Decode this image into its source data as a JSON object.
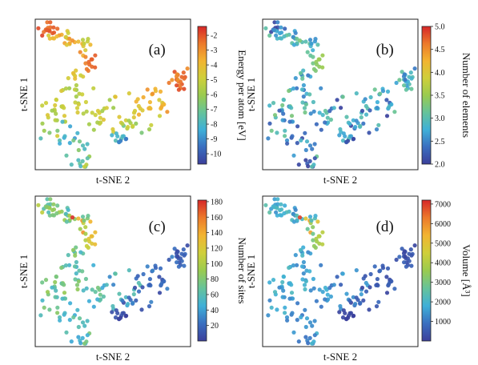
{
  "figure": {
    "colormap": [
      "#3b3f9b",
      "#3a6fc0",
      "#3fb0d8",
      "#66c39a",
      "#9acb4f",
      "#cfcf3a",
      "#f2b431",
      "#ec7a2b",
      "#d62728"
    ],
    "point_color": "#000000"
  },
  "chart_data": [
    {
      "type": "scatter",
      "panel_label": "(a)",
      "xlabel": "t-SNE 2",
      "ylabel": "t-SNE 1",
      "colorbar_label": "Energy per atom [eV]",
      "colorbar_range": [
        -10.7,
        -1.4
      ],
      "colorbar_ticks": [
        -2,
        -3,
        -4,
        -5,
        -6,
        -7,
        -8,
        -9,
        -10
      ],
      "colorbar_tick_labels": [
        "-2",
        "-3",
        "-4",
        "-5",
        "-6",
        "-7",
        "-8",
        "-9",
        "-10"
      ],
      "xlim": [
        0,
        100
      ],
      "ylim": [
        0,
        100
      ],
      "clusters": [
        {
          "x": 8,
          "y": 93,
          "sx": 4,
          "sy": 2.5,
          "n": 16,
          "c": [
            -2.5,
            -1.8
          ]
        },
        {
          "x": 18,
          "y": 88,
          "sx": 5,
          "sy": 3,
          "n": 18,
          "c": [
            -5,
            -3
          ]
        },
        {
          "x": 30,
          "y": 82,
          "sx": 4,
          "sy": 4,
          "n": 12,
          "c": [
            -5.5,
            -3
          ]
        },
        {
          "x": 33,
          "y": 72,
          "sx": 4,
          "sy": 3,
          "n": 12,
          "c": [
            -3.5,
            -2
          ]
        },
        {
          "x": 26,
          "y": 64,
          "sx": 3,
          "sy": 3,
          "n": 8,
          "c": [
            -5,
            -4
          ]
        },
        {
          "x": 25,
          "y": 50,
          "sx": 3,
          "sy": 4,
          "n": 12,
          "c": [
            -6,
            -4.5
          ]
        },
        {
          "x": 15,
          "y": 38,
          "sx": 6,
          "sy": 6,
          "n": 25,
          "c": [
            -6,
            -4.5
          ]
        },
        {
          "x": 20,
          "y": 20,
          "sx": 7,
          "sy": 6,
          "n": 20,
          "c": [
            -9,
            -6
          ]
        },
        {
          "x": 28,
          "y": 6,
          "sx": 4,
          "sy": 3,
          "n": 10,
          "c": [
            -8,
            -5
          ]
        },
        {
          "x": 40,
          "y": 34,
          "sx": 5,
          "sy": 4,
          "n": 14,
          "c": [
            -6,
            -4.5
          ]
        },
        {
          "x": 55,
          "y": 38,
          "sx": 8,
          "sy": 8,
          "n": 20,
          "c": [
            -6,
            -4
          ]
        },
        {
          "x": 55,
          "y": 20,
          "sx": 5,
          "sy": 3,
          "n": 12,
          "c": [
            -9.5,
            -7.5
          ]
        },
        {
          "x": 78,
          "y": 45,
          "sx": 8,
          "sy": 6,
          "n": 26,
          "c": [
            -5,
            -3
          ]
        },
        {
          "x": 93,
          "y": 60,
          "sx": 4,
          "sy": 4,
          "n": 20,
          "c": [
            -3,
            -1.8
          ]
        },
        {
          "x": 65,
          "y": 30,
          "sx": 5,
          "sy": 4,
          "n": 10,
          "c": [
            -7,
            -5
          ]
        }
      ]
    },
    {
      "type": "scatter",
      "panel_label": "(b)",
      "xlabel": "t-SNE 2",
      "ylabel": "t-SNE 1",
      "colorbar_label": "Number of elements",
      "colorbar_range": [
        2.0,
        5.0
      ],
      "colorbar_ticks": [
        5.0,
        4.5,
        4.0,
        3.5,
        3.0,
        2.5,
        2.0
      ],
      "colorbar_tick_labels": [
        "5.0",
        "4.5",
        "4.0",
        "3.5",
        "3.0",
        "2.5",
        "2.0"
      ],
      "xlim": [
        0,
        100
      ],
      "ylim": [
        0,
        100
      ],
      "clusters": [
        {
          "x": 8,
          "y": 93,
          "sx": 4,
          "sy": 2.5,
          "n": 16,
          "c": [
            2.0,
            3.2
          ]
        },
        {
          "x": 18,
          "y": 88,
          "sx": 5,
          "sy": 3,
          "n": 18,
          "c": [
            2.5,
            3.2
          ]
        },
        {
          "x": 30,
          "y": 82,
          "sx": 4,
          "sy": 4,
          "n": 12,
          "c": [
            2.5,
            3.3
          ]
        },
        {
          "x": 33,
          "y": 72,
          "sx": 4,
          "sy": 3,
          "n": 12,
          "c": [
            2.8,
            3.6
          ]
        },
        {
          "x": 26,
          "y": 64,
          "sx": 3,
          "sy": 3,
          "n": 8,
          "c": [
            2.4,
            3.2
          ]
        },
        {
          "x": 25,
          "y": 50,
          "sx": 3,
          "sy": 4,
          "n": 12,
          "c": [
            2.4,
            3.3
          ]
        },
        {
          "x": 15,
          "y": 38,
          "sx": 6,
          "sy": 6,
          "n": 25,
          "c": [
            2.2,
            3.3
          ]
        },
        {
          "x": 20,
          "y": 20,
          "sx": 7,
          "sy": 6,
          "n": 20,
          "c": [
            2.0,
            3.2
          ]
        },
        {
          "x": 28,
          "y": 6,
          "sx": 4,
          "sy": 3,
          "n": 10,
          "c": [
            2.0,
            3.0
          ]
        },
        {
          "x": 40,
          "y": 34,
          "sx": 5,
          "sy": 4,
          "n": 14,
          "c": [
            2.2,
            3.2
          ]
        },
        {
          "x": 55,
          "y": 38,
          "sx": 8,
          "sy": 8,
          "n": 20,
          "c": [
            2.0,
            3.3
          ]
        },
        {
          "x": 55,
          "y": 20,
          "sx": 5,
          "sy": 3,
          "n": 12,
          "c": [
            2.0,
            3.0
          ]
        },
        {
          "x": 78,
          "y": 45,
          "sx": 8,
          "sy": 6,
          "n": 26,
          "c": [
            2.0,
            3.2
          ]
        },
        {
          "x": 93,
          "y": 60,
          "sx": 4,
          "sy": 4,
          "n": 20,
          "c": [
            2.4,
            3.2
          ]
        },
        {
          "x": 65,
          "y": 30,
          "sx": 5,
          "sy": 4,
          "n": 10,
          "c": [
            2.0,
            3.0
          ]
        }
      ]
    },
    {
      "type": "scatter",
      "panel_label": "(c)",
      "xlabel": "t-SNE 2",
      "ylabel": "t-SNE 1",
      "colorbar_label": "Number of sites",
      "colorbar_range": [
        0,
        182
      ],
      "colorbar_ticks": [
        180,
        160,
        140,
        120,
        100,
        80,
        60,
        40,
        20
      ],
      "colorbar_tick_labels": [
        "180",
        "160",
        "140",
        "120",
        "100",
        "80",
        "60",
        "40",
        "20"
      ],
      "xlim": [
        0,
        100
      ],
      "ylim": [
        0,
        100
      ],
      "clusters": [
        {
          "x": 8,
          "y": 93,
          "sx": 4,
          "sy": 2.5,
          "n": 16,
          "c": [
            60,
            110
          ]
        },
        {
          "x": 18,
          "y": 88,
          "sx": 5,
          "sy": 3,
          "n": 18,
          "c": [
            50,
            100
          ]
        },
        {
          "x": 30,
          "y": 82,
          "sx": 4,
          "sy": 4,
          "n": 12,
          "c": [
            60,
            180
          ]
        },
        {
          "x": 33,
          "y": 72,
          "sx": 4,
          "sy": 3,
          "n": 12,
          "c": [
            60,
            140
          ]
        },
        {
          "x": 26,
          "y": 64,
          "sx": 3,
          "sy": 3,
          "n": 8,
          "c": [
            50,
            90
          ]
        },
        {
          "x": 25,
          "y": 50,
          "sx": 3,
          "sy": 4,
          "n": 12,
          "c": [
            50,
            80
          ]
        },
        {
          "x": 15,
          "y": 38,
          "sx": 6,
          "sy": 6,
          "n": 25,
          "c": [
            50,
            90
          ]
        },
        {
          "x": 20,
          "y": 20,
          "sx": 7,
          "sy": 6,
          "n": 20,
          "c": [
            40,
            80
          ]
        },
        {
          "x": 28,
          "y": 6,
          "sx": 4,
          "sy": 3,
          "n": 10,
          "c": [
            40,
            80
          ]
        },
        {
          "x": 40,
          "y": 34,
          "sx": 5,
          "sy": 4,
          "n": 14,
          "c": [
            40,
            80
          ]
        },
        {
          "x": 55,
          "y": 38,
          "sx": 8,
          "sy": 8,
          "n": 20,
          "c": [
            30,
            70
          ]
        },
        {
          "x": 55,
          "y": 20,
          "sx": 5,
          "sy": 3,
          "n": 12,
          "c": [
            0,
            12
          ]
        },
        {
          "x": 78,
          "y": 45,
          "sx": 8,
          "sy": 6,
          "n": 26,
          "c": [
            5,
            30
          ]
        },
        {
          "x": 93,
          "y": 60,
          "sx": 4,
          "sy": 4,
          "n": 20,
          "c": [
            5,
            25
          ]
        },
        {
          "x": 65,
          "y": 30,
          "sx": 5,
          "sy": 4,
          "n": 10,
          "c": [
            5,
            30
          ]
        }
      ]
    },
    {
      "type": "scatter",
      "panel_label": "(d)",
      "xlabel": "t-SNE 2",
      "ylabel": "t-SNE 1",
      "colorbar_label": "Volume [Å³]",
      "colorbar_range": [
        0,
        7200
      ],
      "colorbar_ticks": [
        7000,
        6000,
        5000,
        4000,
        3000,
        2000,
        1000
      ],
      "colorbar_tick_labels": [
        "7000",
        "6000",
        "5000",
        "4000",
        "3000",
        "2000",
        "1000"
      ],
      "xlim": [
        0,
        100
      ],
      "ylim": [
        0,
        100
      ],
      "clusters": [
        {
          "x": 8,
          "y": 93,
          "sx": 4,
          "sy": 2.5,
          "n": 16,
          "c": [
            1500,
            2600
          ]
        },
        {
          "x": 18,
          "y": 88,
          "sx": 5,
          "sy": 3,
          "n": 18,
          "c": [
            1200,
            2400
          ]
        },
        {
          "x": 30,
          "y": 82,
          "sx": 4,
          "sy": 4,
          "n": 12,
          "c": [
            1400,
            7000
          ]
        },
        {
          "x": 33,
          "y": 72,
          "sx": 4,
          "sy": 3,
          "n": 12,
          "c": [
            1500,
            4500
          ]
        },
        {
          "x": 26,
          "y": 64,
          "sx": 3,
          "sy": 3,
          "n": 8,
          "c": [
            1200,
            2200
          ]
        },
        {
          "x": 25,
          "y": 50,
          "sx": 3,
          "sy": 4,
          "n": 12,
          "c": [
            1200,
            2200
          ]
        },
        {
          "x": 15,
          "y": 38,
          "sx": 6,
          "sy": 6,
          "n": 25,
          "c": [
            1200,
            2200
          ]
        },
        {
          "x": 20,
          "y": 20,
          "sx": 7,
          "sy": 6,
          "n": 20,
          "c": [
            900,
            2000
          ]
        },
        {
          "x": 28,
          "y": 6,
          "sx": 4,
          "sy": 3,
          "n": 10,
          "c": [
            900,
            2000
          ]
        },
        {
          "x": 40,
          "y": 34,
          "sx": 5,
          "sy": 4,
          "n": 14,
          "c": [
            900,
            2000
          ]
        },
        {
          "x": 55,
          "y": 38,
          "sx": 8,
          "sy": 8,
          "n": 20,
          "c": [
            600,
            1800
          ]
        },
        {
          "x": 55,
          "y": 20,
          "sx": 5,
          "sy": 3,
          "n": 12,
          "c": [
            0,
            200
          ]
        },
        {
          "x": 78,
          "y": 45,
          "sx": 8,
          "sy": 6,
          "n": 26,
          "c": [
            100,
            800
          ]
        },
        {
          "x": 93,
          "y": 60,
          "sx": 4,
          "sy": 4,
          "n": 20,
          "c": [
            100,
            700
          ]
        },
        {
          "x": 65,
          "y": 30,
          "sx": 5,
          "sy": 4,
          "n": 10,
          "c": [
            100,
            800
          ]
        }
      ]
    }
  ]
}
